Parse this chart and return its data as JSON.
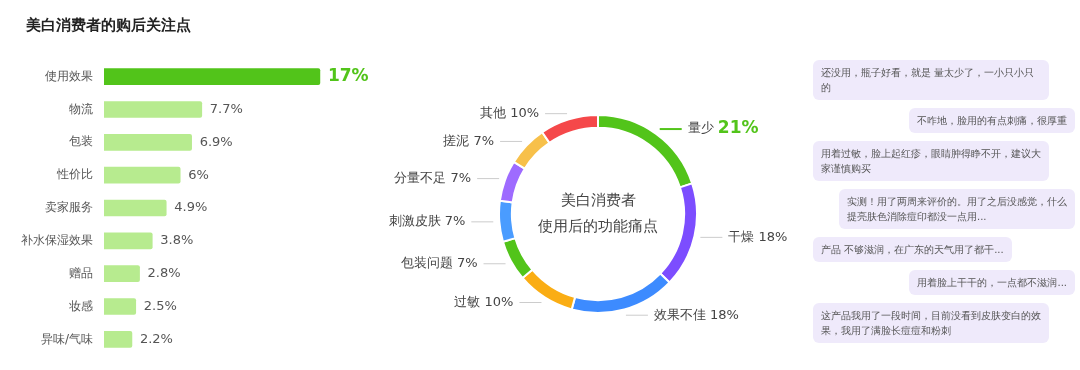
{
  "chart_data": [
    {
      "type": "bar",
      "title": "美白消费者的购后关注点",
      "orientation": "horizontal",
      "categories": [
        "使用效果",
        "物流",
        "包装",
        "性价比",
        "卖家服务",
        "补水保湿效果",
        "赠品",
        "妆感",
        "异味/气味"
      ],
      "values": [
        17,
        7.7,
        6.9,
        6,
        4.9,
        3.8,
        2.8,
        2.5,
        2.2
      ],
      "value_labels": [
        "17%",
        "7.7%",
        "6.9%",
        "6%",
        "4.9%",
        "3.8%",
        "2.8%",
        "2.5%",
        "2.2%"
      ],
      "colors": [
        "#52c41a",
        "#b7eb8f",
        "#b7eb8f",
        "#b7eb8f",
        "#b7eb8f",
        "#b7eb8f",
        "#b7eb8f",
        "#b7eb8f",
        "#b7eb8f"
      ],
      "grid": false,
      "legend": false,
      "tick_labels": "y"
    },
    {
      "type": "donut",
      "title": "美白消费者使用后的功能痛点",
      "categories": [
        "量少",
        "干燥",
        "效果不佳",
        "过敏",
        "包装问题",
        "刺激皮肤",
        "分量不足",
        "搓泥",
        "其他"
      ],
      "values": [
        21,
        18,
        18,
        10,
        7,
        7,
        7,
        7,
        10
      ],
      "value_labels": [
        "21%",
        "18%",
        "18%",
        "10%",
        "7%",
        "7%",
        "7%",
        "7%",
        "10%"
      ],
      "colors": [
        "#52c41a",
        "#7c4dff",
        "#3d8bff",
        "#faad14",
        "#52c41a",
        "#4a9cff",
        "#9e6bff",
        "#f7c04a",
        "#f5484a"
      ],
      "legend": false
    },
    {
      "type": "other",
      "annotations": [
        "还没用，瓶子好看，就是 量太少了，一小只小只的",
        "不咋地，脸用的有点刺痛，很厚重",
        "用着过敏，脸上起红疹，眼睛肿得睁不开，建议大家谨慎购买",
        "实测！用了两周来评价的。用了之后没感觉，什么提亮肤色消除痘印都没一点用...",
        "产品 不够滋润，在广东的天气用了都干...",
        "用着脸上干干的，一点都不滋润...",
        "这产品我用了一段时间，目前没看到皮肤变白的效果，我用了满脸长痘痘和粉刺"
      ]
    }
  ]
}
